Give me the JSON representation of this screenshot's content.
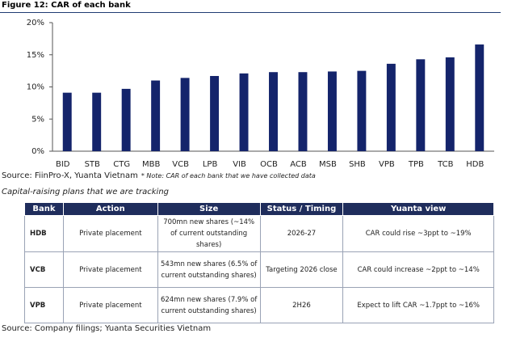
{
  "chart_data": {
    "type": "bar",
    "title": "Figure 12: CAR of each bank",
    "categories": [
      "BID",
      "STB",
      "CTG",
      "MBB",
      "VCB",
      "LPB",
      "VIB",
      "OCB",
      "ACB",
      "MSB",
      "SHB",
      "VPB",
      "TPB",
      "TCB",
      "HDB"
    ],
    "values": [
      9.1,
      9.1,
      9.7,
      11.0,
      11.4,
      11.7,
      12.1,
      12.3,
      12.3,
      12.4,
      12.5,
      13.6,
      14.3,
      14.6,
      16.6
    ],
    "color": "#14246b",
    "ylim": [
      0,
      20
    ],
    "yticks": [
      {
        "value": 0,
        "label": "0%"
      },
      {
        "value": 5,
        "label": "5%"
      },
      {
        "value": 10,
        "label": "10%"
      },
      {
        "value": 15,
        "label": "15%"
      },
      {
        "value": 20,
        "label": "20%"
      }
    ],
    "grid": false
  },
  "source": {
    "text": "Source: FiinPro-X, Yuanta Vietnam",
    "note": "* Note: CAR of each bank that we have collected data"
  },
  "table": {
    "caption": "Capital-raising plans that we are tracking",
    "headers": [
      "Bank",
      "Action",
      "Size",
      "Status / Timing",
      "Yuanta view"
    ],
    "rows": [
      [
        "HDB",
        "Private placement",
        "700mn new shares (~14% of current outstanding shares)",
        "2026-27",
        "CAR could rise ~3ppt to ~19%"
      ],
      [
        "VCB",
        "Private placement",
        "543mn new shares (6.5% of current outstanding shares)",
        "Targeting 2026 close",
        "CAR could increase ~2ppt to ~14%"
      ],
      [
        "VPB",
        "Private placement",
        "624mn new shares (7.9% of current outstanding shares)",
        "2H26",
        "Expect to lift CAR ~1.7ppt to ~16%"
      ]
    ],
    "source": "Source: Company filings; Yuanta Securities Vietnam"
  }
}
